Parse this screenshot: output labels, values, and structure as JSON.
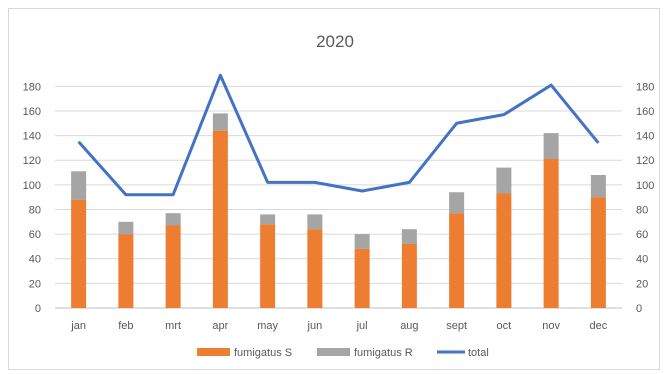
{
  "chart_data": {
    "type": "bar",
    "title": "2020",
    "categories": [
      "jan",
      "feb",
      "mrt",
      "apr",
      "may",
      "jun",
      "jul",
      "aug",
      "sept",
      "oct",
      "nov",
      "dec"
    ],
    "series": [
      {
        "name": "fumigatus S",
        "kind": "stacked-bar",
        "color": "#ED7D31",
        "values": [
          88,
          60,
          67,
          144,
          68,
          64,
          48,
          52,
          77,
          93,
          121,
          90
        ]
      },
      {
        "name": "fumigatus R",
        "kind": "stacked-bar",
        "color": "#A5A5A5",
        "values": [
          23,
          10,
          10,
          14,
          8,
          12,
          12,
          12,
          17,
          21,
          21,
          18
        ]
      },
      {
        "name": "total",
        "kind": "line",
        "color": "#4472C4",
        "values": [
          135,
          92,
          92,
          189,
          102,
          102,
          95,
          102,
          150,
          157,
          181,
          134
        ]
      }
    ],
    "ylim": [
      0,
      190
    ],
    "yticks": [
      "0",
      "20",
      "40",
      "60",
      "80",
      "100",
      "120",
      "140",
      "160",
      "180"
    ],
    "secondary_yticks": [
      "0",
      "20",
      "40",
      "60",
      "80",
      "100",
      "120",
      "140",
      "160",
      "180"
    ],
    "grid": true,
    "legend_position": "bottom"
  }
}
